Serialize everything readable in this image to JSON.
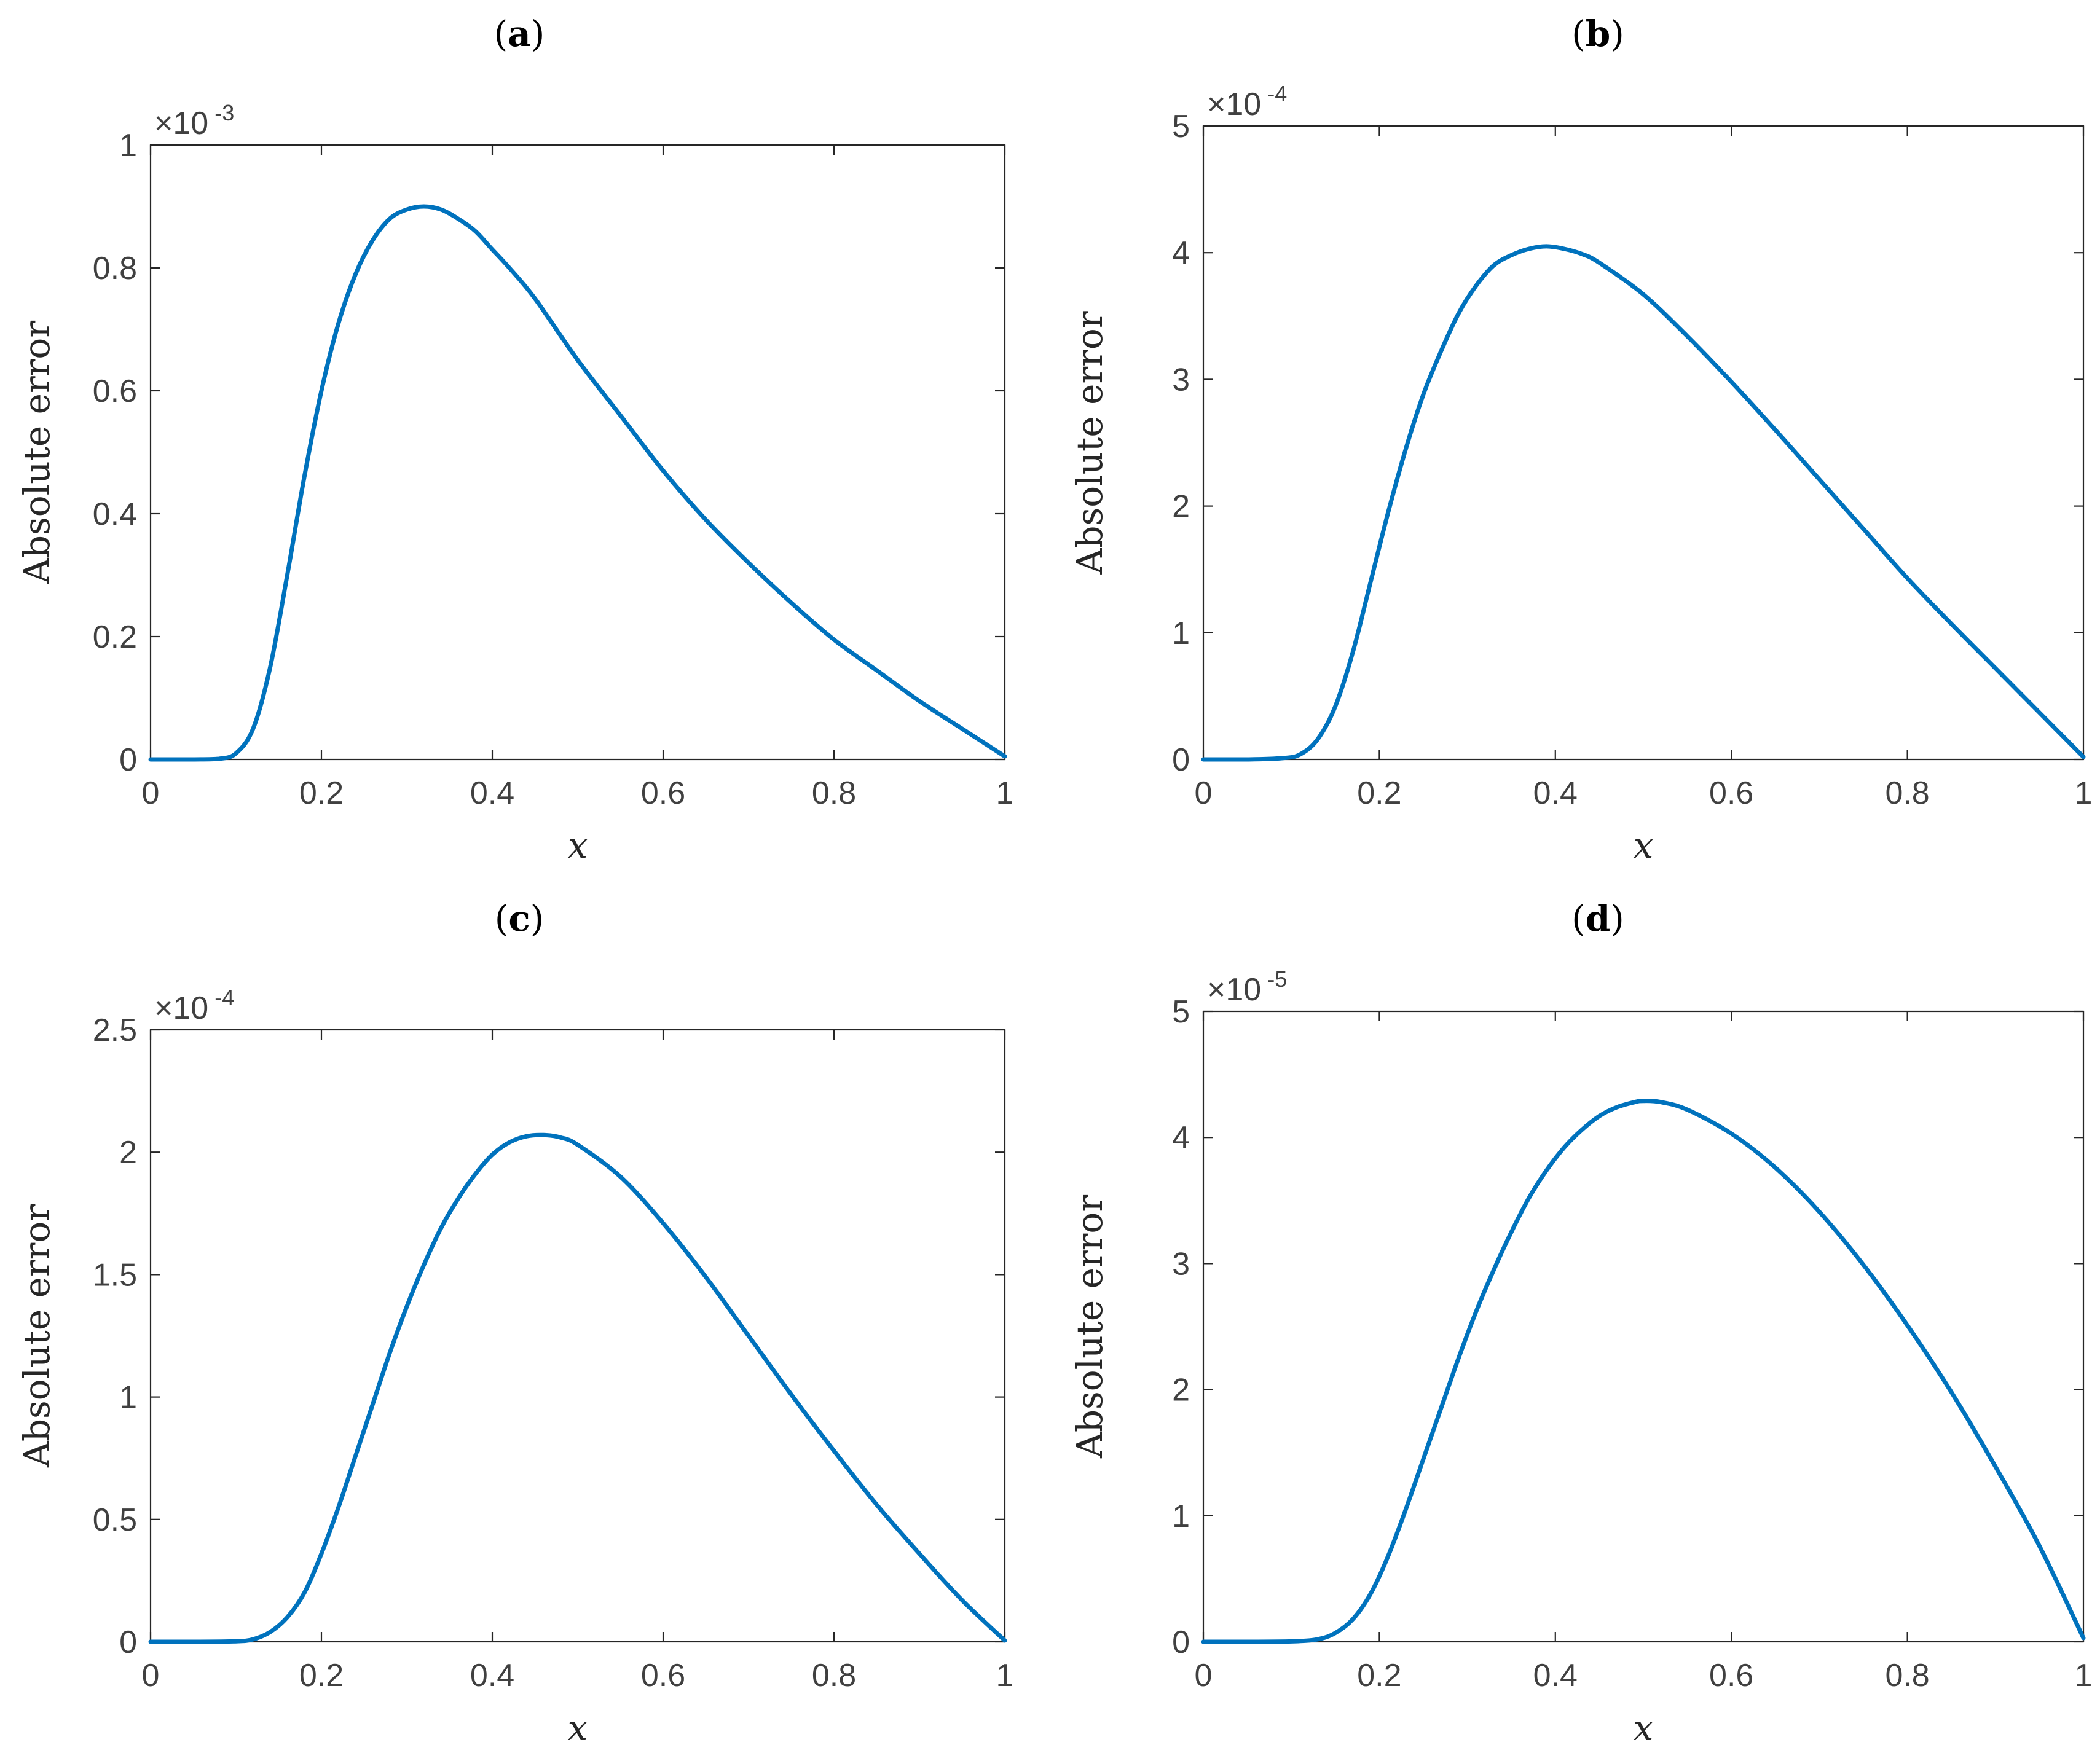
{
  "figure": {
    "background": "#ffffff",
    "line_color": "#0072BD",
    "axis_color": "#262626",
    "tick_color": "#404040"
  },
  "chart_data": [
    {
      "type": "line",
      "panel": "(a)",
      "panel_letter": "a",
      "xlabel": "x",
      "ylabel": "Absolute error",
      "xlim": [
        0,
        1
      ],
      "ylim": [
        0,
        1
      ],
      "y_exponent": "-3",
      "x_ticks": [
        "0",
        "0.2",
        "0.4",
        "0.6",
        "0.8",
        "1"
      ],
      "y_ticks": [
        "0",
        "0.2",
        "0.4",
        "0.6",
        "0.8",
        "1"
      ],
      "series": [
        {
          "x": [
            0,
            0.05,
            0.08,
            0.1,
            0.12,
            0.14,
            0.16,
            0.18,
            0.2,
            0.22,
            0.24,
            0.26,
            0.28,
            0.3,
            0.32,
            0.34,
            0.36,
            0.38,
            0.4,
            0.42,
            0.45,
            0.5,
            0.55,
            0.6,
            0.65,
            0.7,
            0.75,
            0.8,
            0.85,
            0.9,
            0.95,
            1.0
          ],
          "values": [
            0,
            0,
            0.001,
            0.01,
            0.05,
            0.15,
            0.3,
            0.46,
            0.6,
            0.71,
            0.79,
            0.845,
            0.88,
            0.895,
            0.9,
            0.895,
            0.88,
            0.86,
            0.83,
            0.8,
            0.75,
            0.65,
            0.56,
            0.47,
            0.39,
            0.32,
            0.255,
            0.195,
            0.145,
            0.095,
            0.05,
            0.005
          ]
        }
      ]
    },
    {
      "type": "line",
      "panel": "(b)",
      "panel_letter": "b",
      "xlabel": "x",
      "ylabel": "Absolute error",
      "xlim": [
        0,
        1
      ],
      "ylim": [
        0,
        5
      ],
      "y_exponent": "-4",
      "x_ticks": [
        "0",
        "0.2",
        "0.4",
        "0.6",
        "0.8",
        "1"
      ],
      "y_ticks": [
        "0",
        "1",
        "2",
        "3",
        "4",
        "5"
      ],
      "series": [
        {
          "x": [
            0,
            0.05,
            0.09,
            0.11,
            0.13,
            0.15,
            0.17,
            0.19,
            0.21,
            0.23,
            0.25,
            0.27,
            0.29,
            0.31,
            0.33,
            0.35,
            0.37,
            0.39,
            0.41,
            0.43,
            0.45,
            0.5,
            0.55,
            0.6,
            0.65,
            0.7,
            0.75,
            0.8,
            0.85,
            0.9,
            0.95,
            1.0
          ],
          "values": [
            0,
            0,
            0.01,
            0.04,
            0.16,
            0.42,
            0.85,
            1.4,
            1.95,
            2.45,
            2.88,
            3.22,
            3.52,
            3.74,
            3.9,
            3.98,
            4.03,
            4.05,
            4.03,
            3.99,
            3.92,
            3.67,
            3.34,
            2.98,
            2.6,
            2.21,
            1.82,
            1.43,
            1.07,
            0.72,
            0.37,
            0.02
          ]
        }
      ]
    },
    {
      "type": "line",
      "panel": "(c)",
      "panel_letter": "c",
      "xlabel": "x",
      "ylabel": "Absolute error",
      "xlim": [
        0,
        1
      ],
      "ylim": [
        0,
        2.5
      ],
      "y_exponent": "-4",
      "x_ticks": [
        "0",
        "0.2",
        "0.4",
        "0.6",
        "0.8",
        "1"
      ],
      "y_ticks": [
        "0",
        "0.5",
        "1",
        "1.5",
        "2",
        "2.5"
      ],
      "series": [
        {
          "x": [
            0,
            0.05,
            0.1,
            0.12,
            0.14,
            0.16,
            0.18,
            0.2,
            0.22,
            0.24,
            0.26,
            0.28,
            0.3,
            0.32,
            0.34,
            0.36,
            0.38,
            0.4,
            0.42,
            0.44,
            0.46,
            0.48,
            0.5,
            0.55,
            0.6,
            0.65,
            0.7,
            0.75,
            0.8,
            0.85,
            0.9,
            0.95,
            1.0
          ],
          "values": [
            0,
            0,
            0.002,
            0.01,
            0.04,
            0.1,
            0.2,
            0.36,
            0.55,
            0.76,
            0.97,
            1.18,
            1.37,
            1.54,
            1.69,
            1.81,
            1.91,
            1.99,
            2.04,
            2.065,
            2.07,
            2.06,
            2.03,
            1.9,
            1.71,
            1.49,
            1.25,
            1.01,
            0.78,
            0.56,
            0.36,
            0.17,
            0.005
          ]
        }
      ]
    },
    {
      "type": "line",
      "panel": "(d)",
      "panel_letter": "d",
      "xlabel": "x",
      "ylabel": "Absolute error",
      "xlim": [
        0,
        1
      ],
      "ylim": [
        0,
        5
      ],
      "y_exponent": "-5",
      "x_ticks": [
        "0",
        "0.2",
        "0.4",
        "0.6",
        "0.8",
        "1"
      ],
      "y_ticks": [
        "0",
        "1",
        "2",
        "3",
        "4",
        "5"
      ],
      "series": [
        {
          "x": [
            0,
            0.05,
            0.1,
            0.13,
            0.15,
            0.17,
            0.19,
            0.21,
            0.23,
            0.25,
            0.27,
            0.29,
            0.31,
            0.33,
            0.35,
            0.37,
            0.39,
            0.41,
            0.43,
            0.45,
            0.47,
            0.49,
            0.5,
            0.52,
            0.55,
            0.6,
            0.65,
            0.7,
            0.75,
            0.8,
            0.85,
            0.9,
            0.95,
            1.0
          ],
          "values": [
            0,
            0,
            0.003,
            0.02,
            0.07,
            0.18,
            0.38,
            0.68,
            1.05,
            1.45,
            1.85,
            2.25,
            2.62,
            2.95,
            3.25,
            3.52,
            3.74,
            3.92,
            4.06,
            4.17,
            4.24,
            4.28,
            4.29,
            4.28,
            4.22,
            4.03,
            3.76,
            3.41,
            2.99,
            2.51,
            1.98,
            1.39,
            0.76,
            0.03
          ]
        }
      ]
    }
  ]
}
